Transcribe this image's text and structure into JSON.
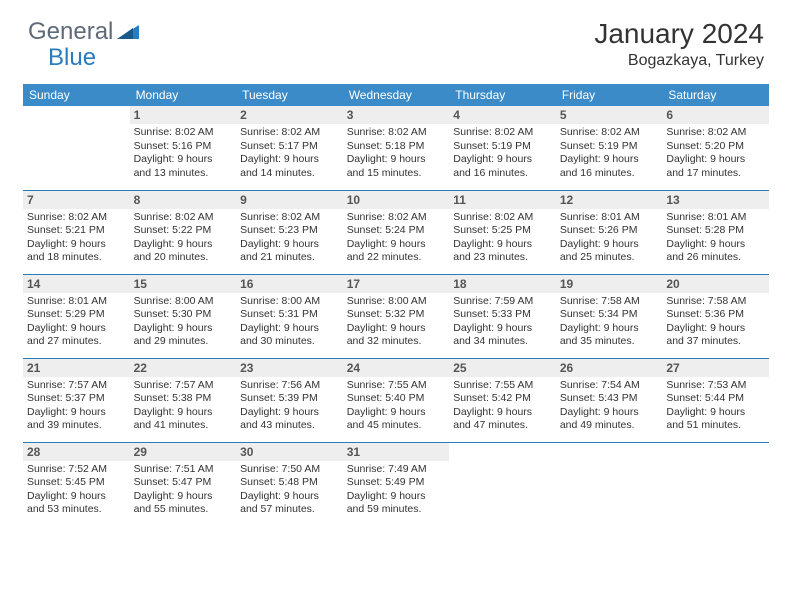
{
  "logo": {
    "text_left": "General",
    "text_right": "Blue"
  },
  "title": "January 2024",
  "location": "Bogazkaya, Turkey",
  "colors": {
    "header_bg": "#3b8bc9",
    "header_text": "#ffffff",
    "daynum_bg": "#eeeeee",
    "border": "#2b7bbf",
    "logo_gray": "#5f6a78",
    "logo_blue": "#2b7bbf"
  },
  "day_labels": [
    "Sunday",
    "Monday",
    "Tuesday",
    "Wednesday",
    "Thursday",
    "Friday",
    "Saturday"
  ],
  "weeks": [
    [
      {
        "n": "",
        "sr": "",
        "ss": "",
        "d1": "",
        "d2": ""
      },
      {
        "n": "1",
        "sr": "Sunrise: 8:02 AM",
        "ss": "Sunset: 5:16 PM",
        "d1": "Daylight: 9 hours",
        "d2": "and 13 minutes."
      },
      {
        "n": "2",
        "sr": "Sunrise: 8:02 AM",
        "ss": "Sunset: 5:17 PM",
        "d1": "Daylight: 9 hours",
        "d2": "and 14 minutes."
      },
      {
        "n": "3",
        "sr": "Sunrise: 8:02 AM",
        "ss": "Sunset: 5:18 PM",
        "d1": "Daylight: 9 hours",
        "d2": "and 15 minutes."
      },
      {
        "n": "4",
        "sr": "Sunrise: 8:02 AM",
        "ss": "Sunset: 5:19 PM",
        "d1": "Daylight: 9 hours",
        "d2": "and 16 minutes."
      },
      {
        "n": "5",
        "sr": "Sunrise: 8:02 AM",
        "ss": "Sunset: 5:19 PM",
        "d1": "Daylight: 9 hours",
        "d2": "and 16 minutes."
      },
      {
        "n": "6",
        "sr": "Sunrise: 8:02 AM",
        "ss": "Sunset: 5:20 PM",
        "d1": "Daylight: 9 hours",
        "d2": "and 17 minutes."
      }
    ],
    [
      {
        "n": "7",
        "sr": "Sunrise: 8:02 AM",
        "ss": "Sunset: 5:21 PM",
        "d1": "Daylight: 9 hours",
        "d2": "and 18 minutes."
      },
      {
        "n": "8",
        "sr": "Sunrise: 8:02 AM",
        "ss": "Sunset: 5:22 PM",
        "d1": "Daylight: 9 hours",
        "d2": "and 20 minutes."
      },
      {
        "n": "9",
        "sr": "Sunrise: 8:02 AM",
        "ss": "Sunset: 5:23 PM",
        "d1": "Daylight: 9 hours",
        "d2": "and 21 minutes."
      },
      {
        "n": "10",
        "sr": "Sunrise: 8:02 AM",
        "ss": "Sunset: 5:24 PM",
        "d1": "Daylight: 9 hours",
        "d2": "and 22 minutes."
      },
      {
        "n": "11",
        "sr": "Sunrise: 8:02 AM",
        "ss": "Sunset: 5:25 PM",
        "d1": "Daylight: 9 hours",
        "d2": "and 23 minutes."
      },
      {
        "n": "12",
        "sr": "Sunrise: 8:01 AM",
        "ss": "Sunset: 5:26 PM",
        "d1": "Daylight: 9 hours",
        "d2": "and 25 minutes."
      },
      {
        "n": "13",
        "sr": "Sunrise: 8:01 AM",
        "ss": "Sunset: 5:28 PM",
        "d1": "Daylight: 9 hours",
        "d2": "and 26 minutes."
      }
    ],
    [
      {
        "n": "14",
        "sr": "Sunrise: 8:01 AM",
        "ss": "Sunset: 5:29 PM",
        "d1": "Daylight: 9 hours",
        "d2": "and 27 minutes."
      },
      {
        "n": "15",
        "sr": "Sunrise: 8:00 AM",
        "ss": "Sunset: 5:30 PM",
        "d1": "Daylight: 9 hours",
        "d2": "and 29 minutes."
      },
      {
        "n": "16",
        "sr": "Sunrise: 8:00 AM",
        "ss": "Sunset: 5:31 PM",
        "d1": "Daylight: 9 hours",
        "d2": "and 30 minutes."
      },
      {
        "n": "17",
        "sr": "Sunrise: 8:00 AM",
        "ss": "Sunset: 5:32 PM",
        "d1": "Daylight: 9 hours",
        "d2": "and 32 minutes."
      },
      {
        "n": "18",
        "sr": "Sunrise: 7:59 AM",
        "ss": "Sunset: 5:33 PM",
        "d1": "Daylight: 9 hours",
        "d2": "and 34 minutes."
      },
      {
        "n": "19",
        "sr": "Sunrise: 7:58 AM",
        "ss": "Sunset: 5:34 PM",
        "d1": "Daylight: 9 hours",
        "d2": "and 35 minutes."
      },
      {
        "n": "20",
        "sr": "Sunrise: 7:58 AM",
        "ss": "Sunset: 5:36 PM",
        "d1": "Daylight: 9 hours",
        "d2": "and 37 minutes."
      }
    ],
    [
      {
        "n": "21",
        "sr": "Sunrise: 7:57 AM",
        "ss": "Sunset: 5:37 PM",
        "d1": "Daylight: 9 hours",
        "d2": "and 39 minutes."
      },
      {
        "n": "22",
        "sr": "Sunrise: 7:57 AM",
        "ss": "Sunset: 5:38 PM",
        "d1": "Daylight: 9 hours",
        "d2": "and 41 minutes."
      },
      {
        "n": "23",
        "sr": "Sunrise: 7:56 AM",
        "ss": "Sunset: 5:39 PM",
        "d1": "Daylight: 9 hours",
        "d2": "and 43 minutes."
      },
      {
        "n": "24",
        "sr": "Sunrise: 7:55 AM",
        "ss": "Sunset: 5:40 PM",
        "d1": "Daylight: 9 hours",
        "d2": "and 45 minutes."
      },
      {
        "n": "25",
        "sr": "Sunrise: 7:55 AM",
        "ss": "Sunset: 5:42 PM",
        "d1": "Daylight: 9 hours",
        "d2": "and 47 minutes."
      },
      {
        "n": "26",
        "sr": "Sunrise: 7:54 AM",
        "ss": "Sunset: 5:43 PM",
        "d1": "Daylight: 9 hours",
        "d2": "and 49 minutes."
      },
      {
        "n": "27",
        "sr": "Sunrise: 7:53 AM",
        "ss": "Sunset: 5:44 PM",
        "d1": "Daylight: 9 hours",
        "d2": "and 51 minutes."
      }
    ],
    [
      {
        "n": "28",
        "sr": "Sunrise: 7:52 AM",
        "ss": "Sunset: 5:45 PM",
        "d1": "Daylight: 9 hours",
        "d2": "and 53 minutes."
      },
      {
        "n": "29",
        "sr": "Sunrise: 7:51 AM",
        "ss": "Sunset: 5:47 PM",
        "d1": "Daylight: 9 hours",
        "d2": "and 55 minutes."
      },
      {
        "n": "30",
        "sr": "Sunrise: 7:50 AM",
        "ss": "Sunset: 5:48 PM",
        "d1": "Daylight: 9 hours",
        "d2": "and 57 minutes."
      },
      {
        "n": "31",
        "sr": "Sunrise: 7:49 AM",
        "ss": "Sunset: 5:49 PM",
        "d1": "Daylight: 9 hours",
        "d2": "and 59 minutes."
      },
      {
        "n": "",
        "sr": "",
        "ss": "",
        "d1": "",
        "d2": ""
      },
      {
        "n": "",
        "sr": "",
        "ss": "",
        "d1": "",
        "d2": ""
      },
      {
        "n": "",
        "sr": "",
        "ss": "",
        "d1": "",
        "d2": ""
      }
    ]
  ]
}
